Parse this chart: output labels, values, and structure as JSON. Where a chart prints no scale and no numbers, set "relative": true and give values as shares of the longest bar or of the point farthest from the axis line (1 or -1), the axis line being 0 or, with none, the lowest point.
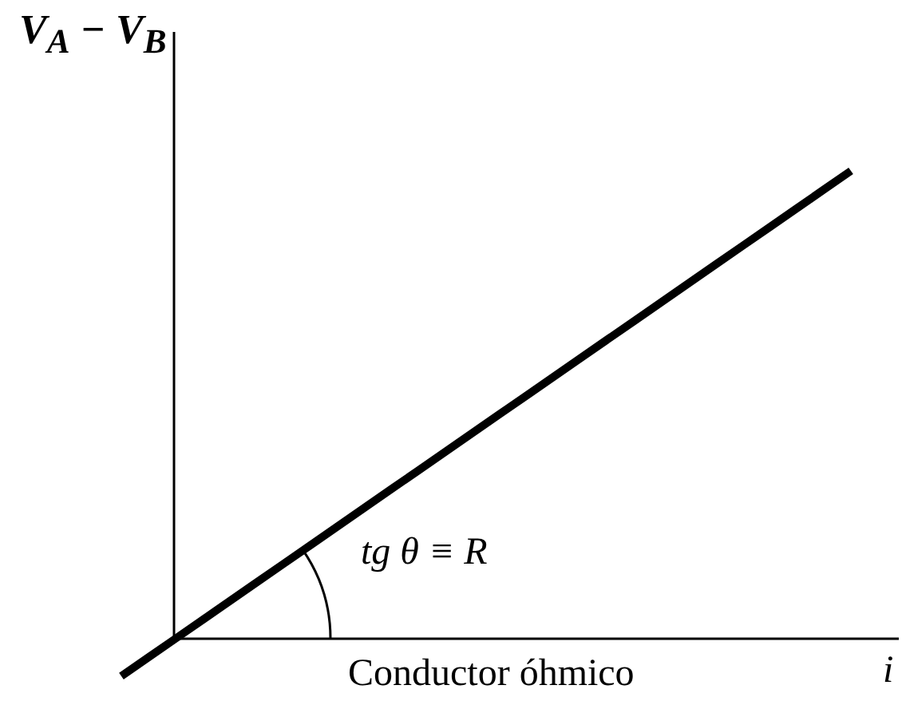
{
  "chart_data": {
    "type": "line",
    "relative": true,
    "xlabel": "i",
    "ylabel": "V$_{A}$ − V$_{B}$",
    "annotations": [
      "tg θ ≡ R",
      "Conductor óhmico"
    ],
    "categories": [
      null,
      null,
      null,
      null,
      null,
      null,
      null,
      null,
      null,
      null,
      null,
      null,
      null,
      null,
      null,
      null,
      null,
      null,
      null,
      null,
      null,
      null,
      null,
      null,
      null,
      null,
      null,
      null
    ],
    "series": [
      {
        "color": "#000000",
        "values": [
          -0.08,
          -0.04,
          0,
          0.04,
          0.08,
          0.12,
          0.16,
          0.2,
          0.24,
          0.28,
          0.32,
          0.36,
          0.4,
          0.44,
          0.48,
          0.52,
          0.56,
          0.6,
          0.64,
          0.68,
          0.72,
          0.76,
          0.8,
          0.84,
          0.88,
          0.92,
          0.96,
          1
        ]
      }
    ]
  }
}
